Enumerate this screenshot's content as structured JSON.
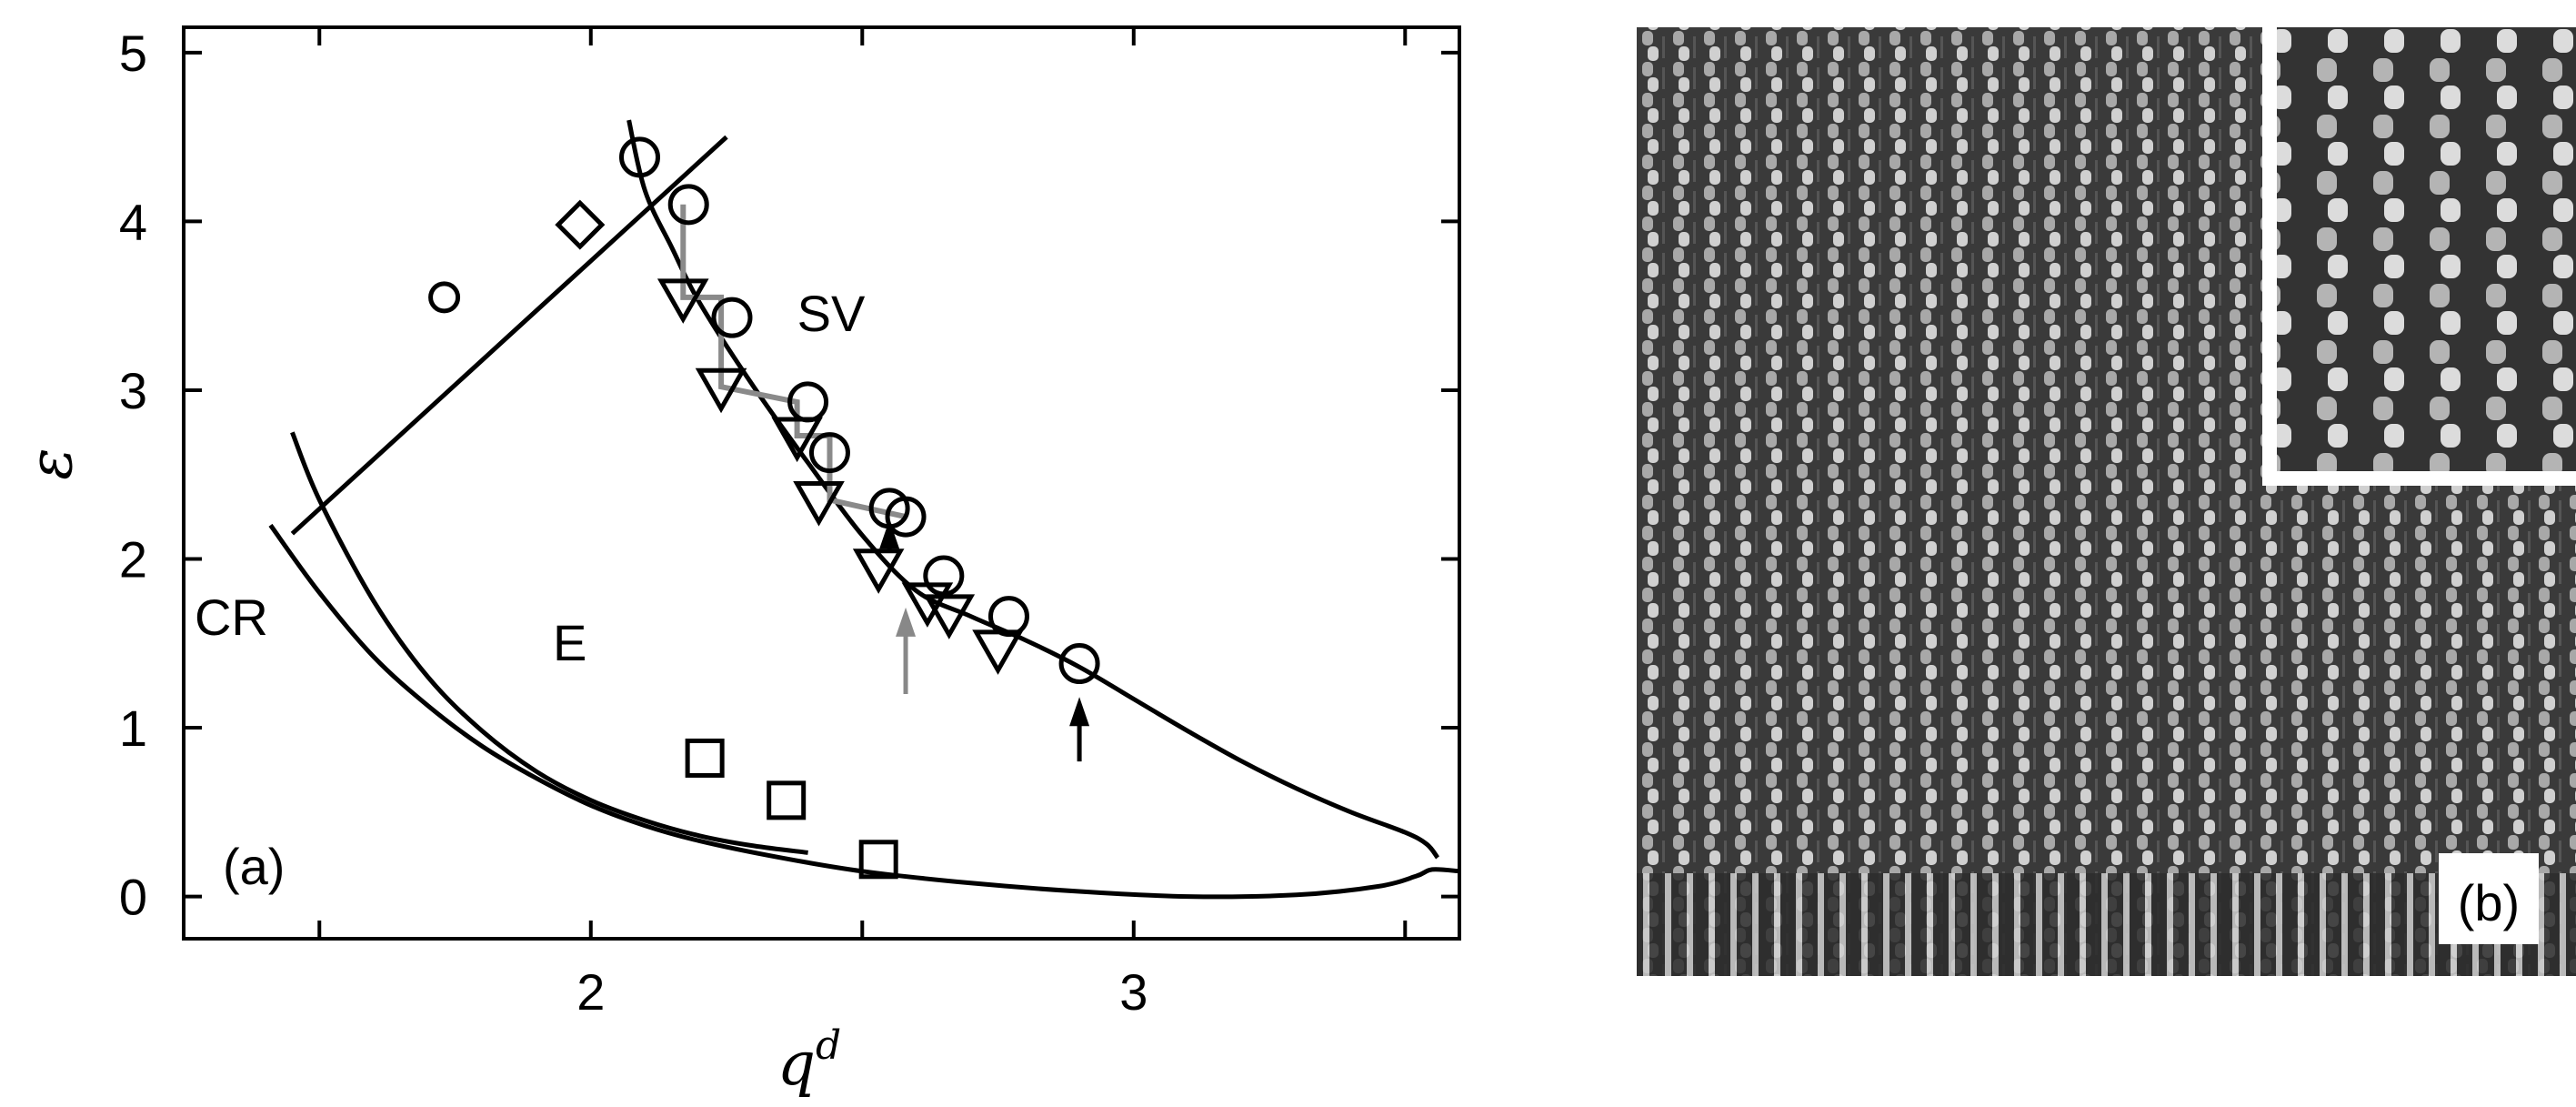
{
  "chart_data": {
    "type": "scatter",
    "panel_label": "(a)",
    "xlabel": "q",
    "xlabel_sup": "d",
    "ylabel": "ε",
    "xlim": [
      1.25,
      3.6
    ],
    "ylim": [
      -0.25,
      5.15
    ],
    "x_ticks": [
      1.5,
      2,
      2.5,
      3,
      3.5
    ],
    "x_tick_labels": [
      "",
      "2",
      "",
      "3",
      ""
    ],
    "y_ticks": [
      0,
      1,
      2,
      3,
      4,
      5
    ],
    "y_tick_labels": [
      "0",
      "1",
      "2",
      "3",
      "4",
      "5"
    ],
    "grid": false,
    "annotations": [
      {
        "text": "SV",
        "x": 2.38,
        "y": 3.35
      },
      {
        "text": "CR",
        "x": 1.27,
        "y": 1.55
      },
      {
        "text": "E",
        "x": 1.93,
        "y": 1.4
      }
    ],
    "curves": [
      {
        "name": "CR",
        "x": [
          1.41,
          1.5,
          1.6,
          1.7,
          1.8,
          1.9,
          2.0,
          2.1,
          2.2,
          2.35,
          2.5,
          2.7,
          2.9,
          3.1,
          3.3,
          3.45,
          3.52,
          3.55,
          3.6
        ],
        "y": [
          2.2,
          1.8,
          1.42,
          1.13,
          0.89,
          0.7,
          0.54,
          0.42,
          0.33,
          0.23,
          0.15,
          0.08,
          0.03,
          0.0,
          0.01,
          0.06,
          0.12,
          0.16,
          0.15
        ]
      },
      {
        "name": "E",
        "x": [
          1.45,
          1.5,
          1.6,
          1.7,
          1.8,
          1.9,
          2.0,
          2.1,
          2.2,
          2.3,
          2.4
        ],
        "y": [
          2.75,
          2.35,
          1.75,
          1.3,
          0.98,
          0.74,
          0.57,
          0.45,
          0.36,
          0.3,
          0.26
        ]
      },
      {
        "name": "SV",
        "x": [
          3.56,
          3.54,
          3.5,
          3.4,
          3.3,
          3.2,
          3.1,
          3.0,
          2.9,
          2.8,
          2.7,
          2.6,
          2.5,
          2.4,
          2.3,
          2.2,
          2.15,
          2.1,
          2.07
        ],
        "y": [
          0.23,
          0.31,
          0.38,
          0.5,
          0.64,
          0.8,
          0.98,
          1.17,
          1.36,
          1.52,
          1.66,
          1.81,
          2.14,
          2.57,
          3.02,
          3.52,
          3.84,
          4.18,
          4.6
        ]
      },
      {
        "name": "diagonal",
        "x": [
          1.45,
          2.25
        ],
        "y": [
          2.15,
          4.5
        ]
      }
    ],
    "series": [
      {
        "marker": "circle-large",
        "x": [
          2.09,
          2.18,
          2.26,
          2.4,
          2.44,
          2.55,
          2.58,
          2.65,
          2.77,
          2.9
        ],
        "y": [
          4.38,
          4.1,
          3.43,
          2.93,
          2.63,
          2.3,
          2.25,
          1.9,
          1.66,
          1.38
        ]
      },
      {
        "marker": "triangle-down",
        "x": [
          2.17,
          2.24,
          2.38,
          2.42,
          2.53,
          2.62,
          2.66,
          2.75
        ],
        "y": [
          3.55,
          3.02,
          2.73,
          2.35,
          1.95,
          1.75,
          1.68,
          1.47
        ]
      },
      {
        "marker": "square",
        "x": [
          2.21,
          2.36,
          2.53
        ],
        "y": [
          0.82,
          0.57,
          0.22
        ]
      },
      {
        "marker": "diamond",
        "x": [
          1.98
        ],
        "y": [
          3.98
        ]
      },
      {
        "marker": "circle-small",
        "x": [
          1.73
        ],
        "y": [
          3.55
        ]
      }
    ],
    "gray_path": {
      "x": [
        2.17,
        2.17,
        2.24,
        2.24,
        2.38,
        2.38,
        2.44,
        2.44,
        2.58
      ],
      "y": [
        4.1,
        3.55,
        3.55,
        3.02,
        2.93,
        2.73,
        2.73,
        2.35,
        2.25
      ]
    },
    "arrows": [
      {
        "color": "#888888",
        "x": 2.58,
        "from": 1.2,
        "to": 1.68
      },
      {
        "color": "#000000",
        "x": 2.9,
        "from": 0.8,
        "to": 1.15
      },
      {
        "color": "#000000",
        "x": 2.55,
        "from": 2.05,
        "to": 2.2
      }
    ]
  },
  "image_panel": {
    "label": "(b)",
    "background": "#3a3a3a",
    "inset_border": "#ffffff"
  }
}
